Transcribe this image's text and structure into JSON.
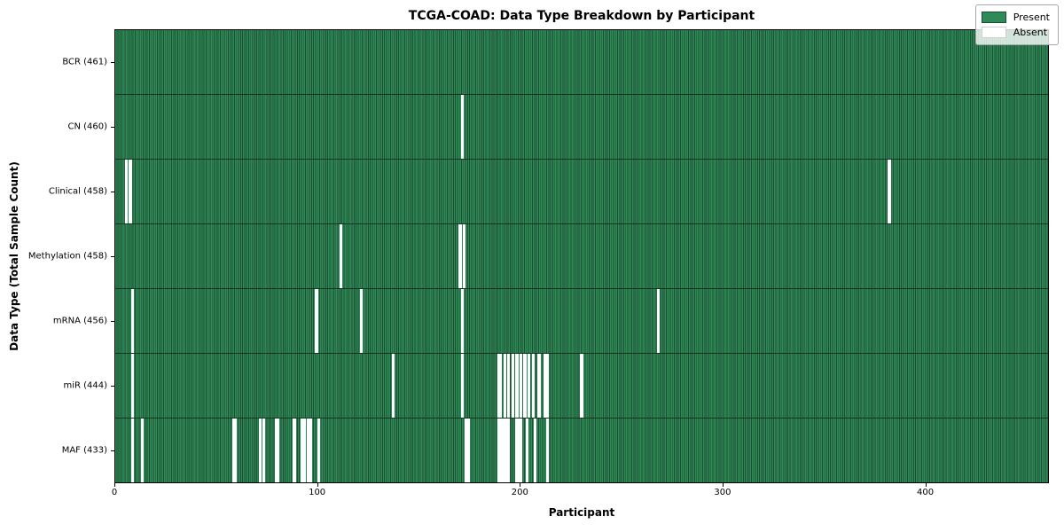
{
  "title": "TCGA-COAD: Data Type Breakdown by Participant",
  "xlabel": "Participant",
  "ylabel": "Data Type (Total Sample Count)",
  "legend": {
    "present_label": "Present",
    "absent_label": "Absent"
  },
  "colors": {
    "present": "#2e8b57",
    "present_edge": "#1d4d33",
    "absent": "#ffffff",
    "row_divider": "#0a2314",
    "axis": "#000000",
    "legend_border": "#a8a8a8"
  },
  "chart_data": {
    "type": "heatmap",
    "title": "TCGA-COAD: Data Type Breakdown by Participant",
    "xlabel": "Participant",
    "ylabel": "Data Type (Total Sample Count)",
    "legend_entries": [
      "Present",
      "Absent"
    ],
    "legend_position": "upper right",
    "n_participants": 461,
    "x_ticks": [
      0,
      100,
      200,
      300,
      400
    ],
    "xlim": [
      0,
      461
    ],
    "grid": false,
    "rows": [
      {
        "label": "BCR (461)",
        "data_type": "BCR",
        "present_count": 461,
        "absent_participants": []
      },
      {
        "label": "CN (460)",
        "data_type": "CN",
        "present_count": 460,
        "absent_participants": [
          171
        ]
      },
      {
        "label": "Clinical (458)",
        "data_type": "Clinical",
        "present_count": 458,
        "absent_participants": [
          5,
          7,
          382
        ]
      },
      {
        "label": "Methylation (458)",
        "data_type": "Methylation",
        "present_count": 458,
        "absent_participants": [
          111,
          170,
          172
        ]
      },
      {
        "label": "mRNA (456)",
        "data_type": "mRNA",
        "present_count": 456,
        "absent_participants": [
          8,
          99,
          121,
          171,
          268
        ]
      },
      {
        "label": "miR (444)",
        "data_type": "miR",
        "present_count": 444,
        "absent_participants": [
          8,
          137,
          171,
          189,
          190,
          192,
          194,
          196,
          198,
          200,
          202,
          204,
          206,
          209,
          212,
          213,
          230
        ]
      },
      {
        "label": "MAF (433)",
        "data_type": "MAF",
        "present_count": 433,
        "absent_participants": [
          8,
          13,
          58,
          59,
          71,
          73,
          79,
          80,
          88,
          92,
          93,
          95,
          96,
          100,
          173,
          174,
          189,
          190,
          191,
          192,
          193,
          194,
          198,
          199,
          200,
          203,
          207,
          213
        ]
      }
    ]
  }
}
